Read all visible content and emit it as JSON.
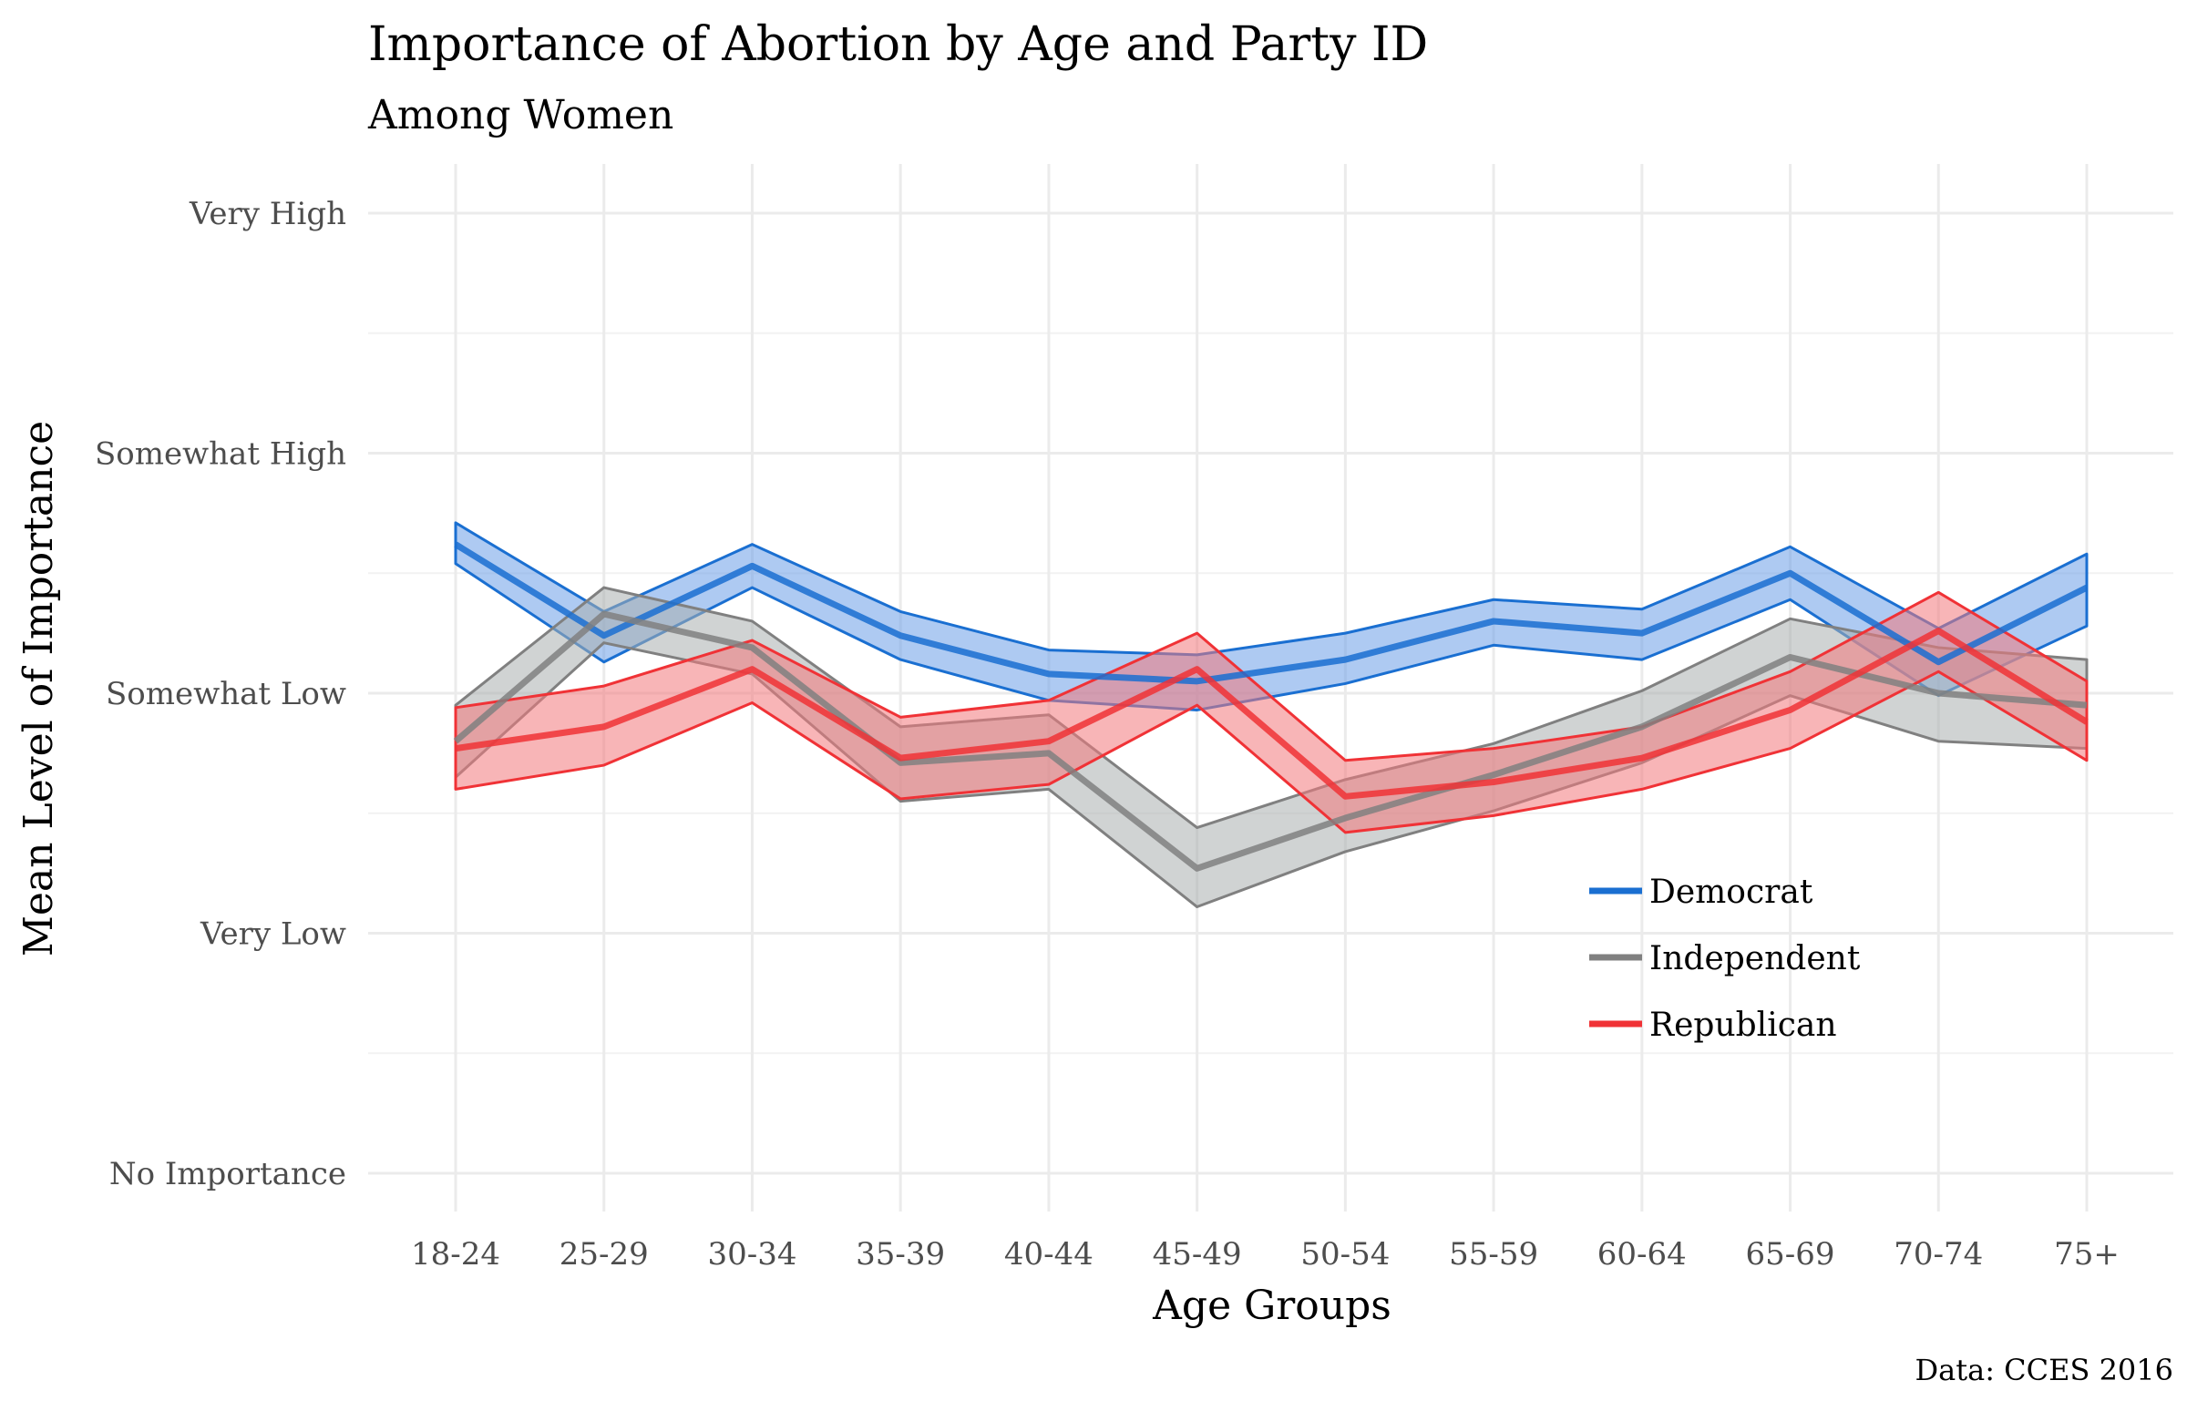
{
  "chart_data": {
    "type": "line",
    "title": "Importance of Abortion by Age and Party ID",
    "subtitle": "Among Women",
    "xlabel": "Age Groups",
    "ylabel": "Mean Level of Importance",
    "caption": "Data: CCES 2016",
    "categories": [
      "18-24",
      "25-29",
      "30-34",
      "35-39",
      "40-44",
      "45-49",
      "50-54",
      "55-59",
      "60-64",
      "65-69",
      "70-74",
      "75+"
    ],
    "y_ticks": [
      {
        "value": 1,
        "label": "No Importance"
      },
      {
        "value": 2,
        "label": "Very Low"
      },
      {
        "value": 3,
        "label": "Somewhat Low"
      },
      {
        "value": 4,
        "label": "Somewhat High"
      },
      {
        "value": 5,
        "label": "Very High"
      }
    ],
    "ylim": [
      0.85,
      5.2
    ],
    "grid": true,
    "legend_position": "bottom-right",
    "series": [
      {
        "name": "Democrat",
        "color": "#1a6fd1",
        "fill": "#6b9fe8",
        "values": [
          3.62,
          3.24,
          3.53,
          3.24,
          3.08,
          3.05,
          3.14,
          3.3,
          3.25,
          3.5,
          3.13,
          3.44
        ],
        "lower": [
          3.54,
          3.13,
          3.44,
          3.14,
          2.97,
          2.93,
          3.04,
          3.2,
          3.14,
          3.39,
          2.99,
          3.28
        ],
        "upper": [
          3.71,
          3.34,
          3.62,
          3.34,
          3.18,
          3.16,
          3.25,
          3.39,
          3.35,
          3.61,
          3.27,
          3.58
        ]
      },
      {
        "name": "Independent",
        "color": "#808080",
        "fill": "#a9aeae",
        "values": [
          2.8,
          3.33,
          3.19,
          2.71,
          2.75,
          2.27,
          2.48,
          2.66,
          2.86,
          3.15,
          3.0,
          2.95
        ],
        "lower": [
          2.65,
          3.21,
          3.08,
          2.55,
          2.6,
          2.11,
          2.34,
          2.51,
          2.71,
          2.99,
          2.8,
          2.77
        ],
        "upper": [
          2.95,
          3.44,
          3.3,
          2.86,
          2.91,
          2.44,
          2.64,
          2.79,
          3.01,
          3.31,
          3.19,
          3.14
        ]
      },
      {
        "name": "Republican",
        "color": "#f03236",
        "fill": "#f2797c",
        "values": [
          2.77,
          2.86,
          3.1,
          2.73,
          2.8,
          3.1,
          2.57,
          2.63,
          2.73,
          2.93,
          3.26,
          2.88
        ],
        "lower": [
          2.6,
          2.7,
          2.96,
          2.56,
          2.62,
          2.95,
          2.42,
          2.49,
          2.6,
          2.77,
          3.09,
          2.72
        ],
        "upper": [
          2.94,
          3.03,
          3.22,
          2.9,
          2.97,
          3.25,
          2.72,
          2.77,
          2.86,
          3.09,
          3.42,
          3.05
        ]
      }
    ]
  }
}
